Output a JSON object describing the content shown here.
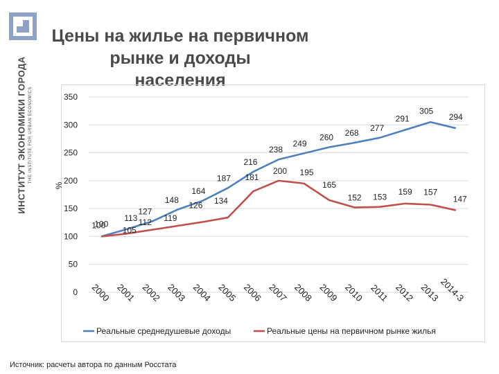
{
  "header": {
    "title_line1": "Цены на жилье на первичном рынке и доходы",
    "title_line2": "населения",
    "org_name": "ИНСТИТУТ ЭКОНОМИКИ ГОРОДА",
    "org_name_en": "THE INSTITUTE FOR URBAN ECONOMICS"
  },
  "footer": {
    "source": "Источник: расчеты автора по данным Росстата"
  },
  "colors": {
    "income": "#4f81bd",
    "prices": "#c0504d",
    "grid": "#d9d9d9",
    "logo": "#8ea2c6"
  },
  "chart_data": {
    "type": "line",
    "categories": [
      "2000",
      "2001",
      "2002",
      "2003",
      "2004",
      "2005",
      "2006",
      "2007",
      "2008",
      "2009",
      "2010",
      "2011",
      "2012",
      "2013",
      "2014-3"
    ],
    "ylabel": "%",
    "ylim": [
      0,
      350
    ],
    "yticks": [
      0,
      50,
      100,
      150,
      200,
      250,
      300,
      350
    ],
    "grid": true,
    "legend_position": "bottom",
    "series": [
      {
        "name": "Реальные среднедушевые доходы",
        "color": "#4f81bd",
        "values": [
          100,
          113,
          127,
          148,
          164,
          187,
          216,
          238,
          249,
          260,
          268,
          277,
          291,
          305,
          294
        ]
      },
      {
        "name": "Реальные цены на первичном рынке жилья",
        "color": "#c0504d",
        "values": [
          100,
          105,
          112,
          119,
          126,
          134,
          181,
          200,
          195,
          165,
          152,
          153,
          159,
          157,
          147
        ]
      }
    ]
  }
}
